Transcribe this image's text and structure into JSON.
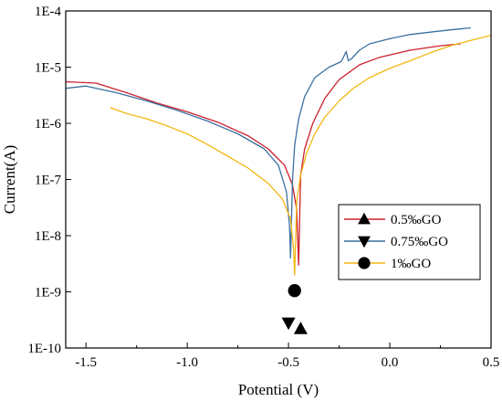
{
  "chart_data": {
    "type": "line",
    "title": "",
    "xlabel": "Potential (V)",
    "ylabel": "Current(A)",
    "xlim": [
      -1.6,
      0.5
    ],
    "ylim": [
      1e-10,
      0.0001
    ],
    "yscale": "log",
    "xticks": [
      -1.5,
      -1.0,
      -0.5,
      0.0,
      0.5
    ],
    "xtick_labels": [
      "-1.5",
      "-1.0",
      "-0.5",
      "0.0",
      "0.5"
    ],
    "yticks": [
      1e-10,
      1e-09,
      1e-08,
      1e-07,
      1e-06,
      1e-05,
      0.0001
    ],
    "ytick_labels": [
      "1E-10",
      "1E-9",
      "1E-8",
      "1E-7",
      "1E-6",
      "1E-5",
      "1E-4"
    ],
    "grid": false,
    "legend_position": "center-right",
    "series": [
      {
        "name": "0.5‰GO",
        "color": "#cc1f2e",
        "marker": "triangle-up",
        "marker_point": {
          "x": -0.44,
          "y": 2.2e-10
        },
        "x": [
          -1.6,
          -1.45,
          -1.3,
          -1.15,
          -1.0,
          -0.85,
          -0.7,
          -0.6,
          -0.52,
          -0.48,
          -0.46,
          -0.455,
          -0.45,
          -0.445,
          -0.44,
          -0.42,
          -0.38,
          -0.32,
          -0.25,
          -0.15,
          -0.05,
          0.1,
          0.25,
          0.35
        ],
        "y": [
          5.5e-06,
          5.2e-06,
          3.5e-06,
          2.3e-06,
          1.6e-06,
          1.05e-06,
          6e-07,
          3.5e-07,
          1.8e-07,
          8e-08,
          3e-08,
          1e-08,
          3e-09,
          2e-08,
          1.2e-07,
          3.5e-07,
          1e-06,
          2.8e-06,
          6e-06,
          1.1e-05,
          1.5e-05,
          2e-05,
          2.4e-05,
          2.6e-05
        ]
      },
      {
        "name": "0.75‰GO",
        "color": "#3a6f9f",
        "marker": "triangle-down",
        "marker_point": {
          "x": -0.5,
          "y": 2.8e-10
        },
        "x": [
          -1.6,
          -1.5,
          -1.35,
          -1.2,
          -1.05,
          -0.9,
          -0.75,
          -0.62,
          -0.55,
          -0.51,
          -0.495,
          -0.49,
          -0.485,
          -0.48,
          -0.47,
          -0.45,
          -0.42,
          -0.37,
          -0.3,
          -0.24,
          -0.215,
          -0.205,
          -0.19,
          -0.15,
          -0.1,
          0.0,
          0.1,
          0.2,
          0.3,
          0.4
        ],
        "y": [
          4.2e-06,
          4.6e-06,
          3.5e-06,
          2.5e-06,
          1.7e-06,
          1.1e-06,
          6.5e-07,
          3.5e-07,
          1.8e-07,
          6e-08,
          1.5e-08,
          4e-09,
          2e-08,
          1e-07,
          4e-07,
          1.2e-06,
          3e-06,
          6.5e-06,
          1e-05,
          1.25e-05,
          1.9e-05,
          1.3e-05,
          1.4e-05,
          2e-05,
          2.6e-05,
          3.2e-05,
          3.8e-05,
          4.2e-05,
          4.6e-05,
          5e-05
        ]
      },
      {
        "name": "1‰GO",
        "color": "#f2b712",
        "marker": "circle",
        "marker_point": {
          "x": -0.47,
          "y": 1.05e-09
        },
        "x": [
          -1.38,
          -1.3,
          -1.2,
          -1.1,
          -1.0,
          -0.9,
          -0.8,
          -0.7,
          -0.6,
          -0.53,
          -0.49,
          -0.475,
          -0.47,
          -0.465,
          -0.46,
          -0.44,
          -0.41,
          -0.37,
          -0.32,
          -0.25,
          -0.18,
          -0.1,
          0.0,
          0.1,
          0.2,
          0.3,
          0.4,
          0.5
        ],
        "y": [
          1.9e-06,
          1.5e-06,
          1.2e-06,
          9e-07,
          6.5e-07,
          4.2e-07,
          2.6e-07,
          1.6e-07,
          8.5e-08,
          4.5e-08,
          2e-08,
          6e-09,
          2e-09,
          8e-09,
          4e-08,
          1.2e-07,
          3e-07,
          6.5e-07,
          1.3e-06,
          2.5e-06,
          4.2e-06,
          6.5e-06,
          9.5e-06,
          1.3e-05,
          1.8e-05,
          2.4e-05,
          3e-05,
          3.7e-05
        ]
      }
    ]
  }
}
